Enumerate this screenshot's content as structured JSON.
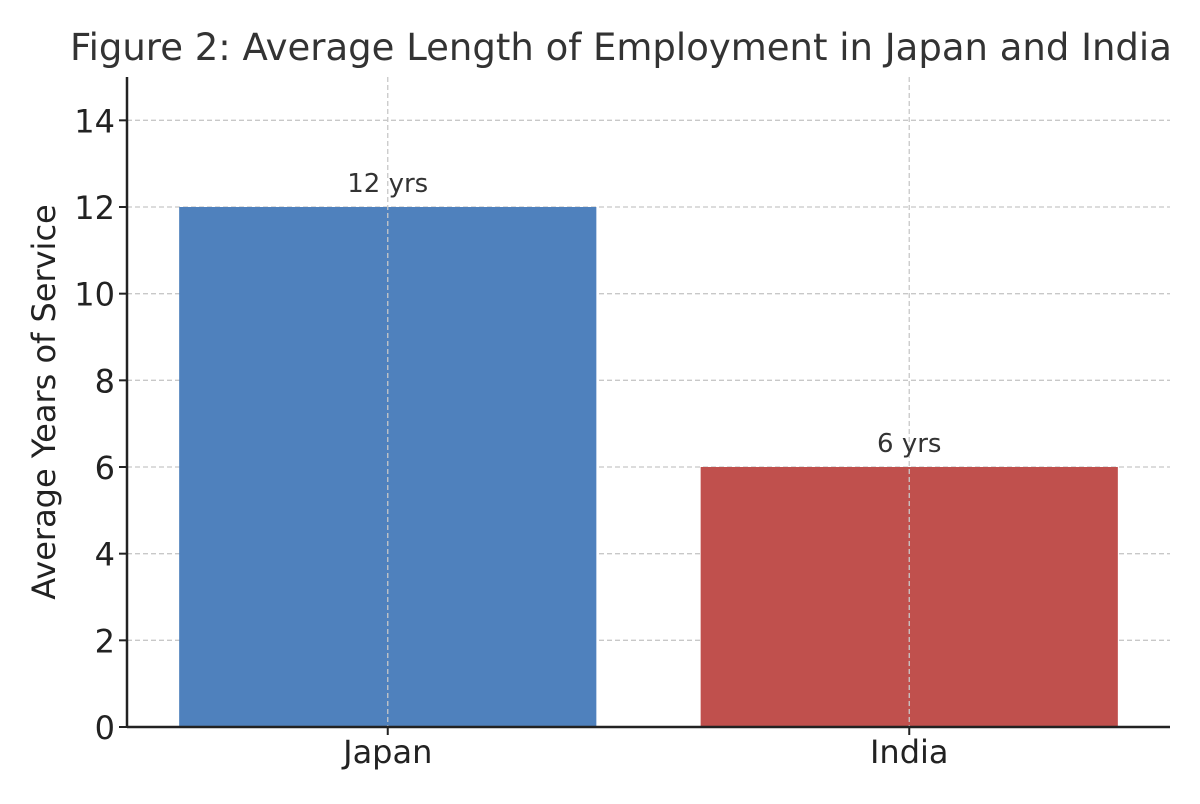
{
  "chart_data": {
    "type": "bar",
    "title": "Figure 2: Average Length of Employment in Japan and India",
    "xlabel": "",
    "ylabel": "Average Years of Service",
    "categories": [
      "Japan",
      "India"
    ],
    "values": [
      12,
      6
    ],
    "value_labels": [
      "12 yrs",
      "6 yrs"
    ],
    "colors": [
      "#4f81bd",
      "#c0504d"
    ],
    "ylim": [
      0,
      15
    ],
    "yticks": [
      0,
      2,
      4,
      6,
      8,
      10,
      12,
      14
    ],
    "ytick_labels": [
      "0",
      "2",
      "4",
      "6",
      "8",
      "10",
      "12",
      "14"
    ],
    "grid": true,
    "legend": "none"
  }
}
